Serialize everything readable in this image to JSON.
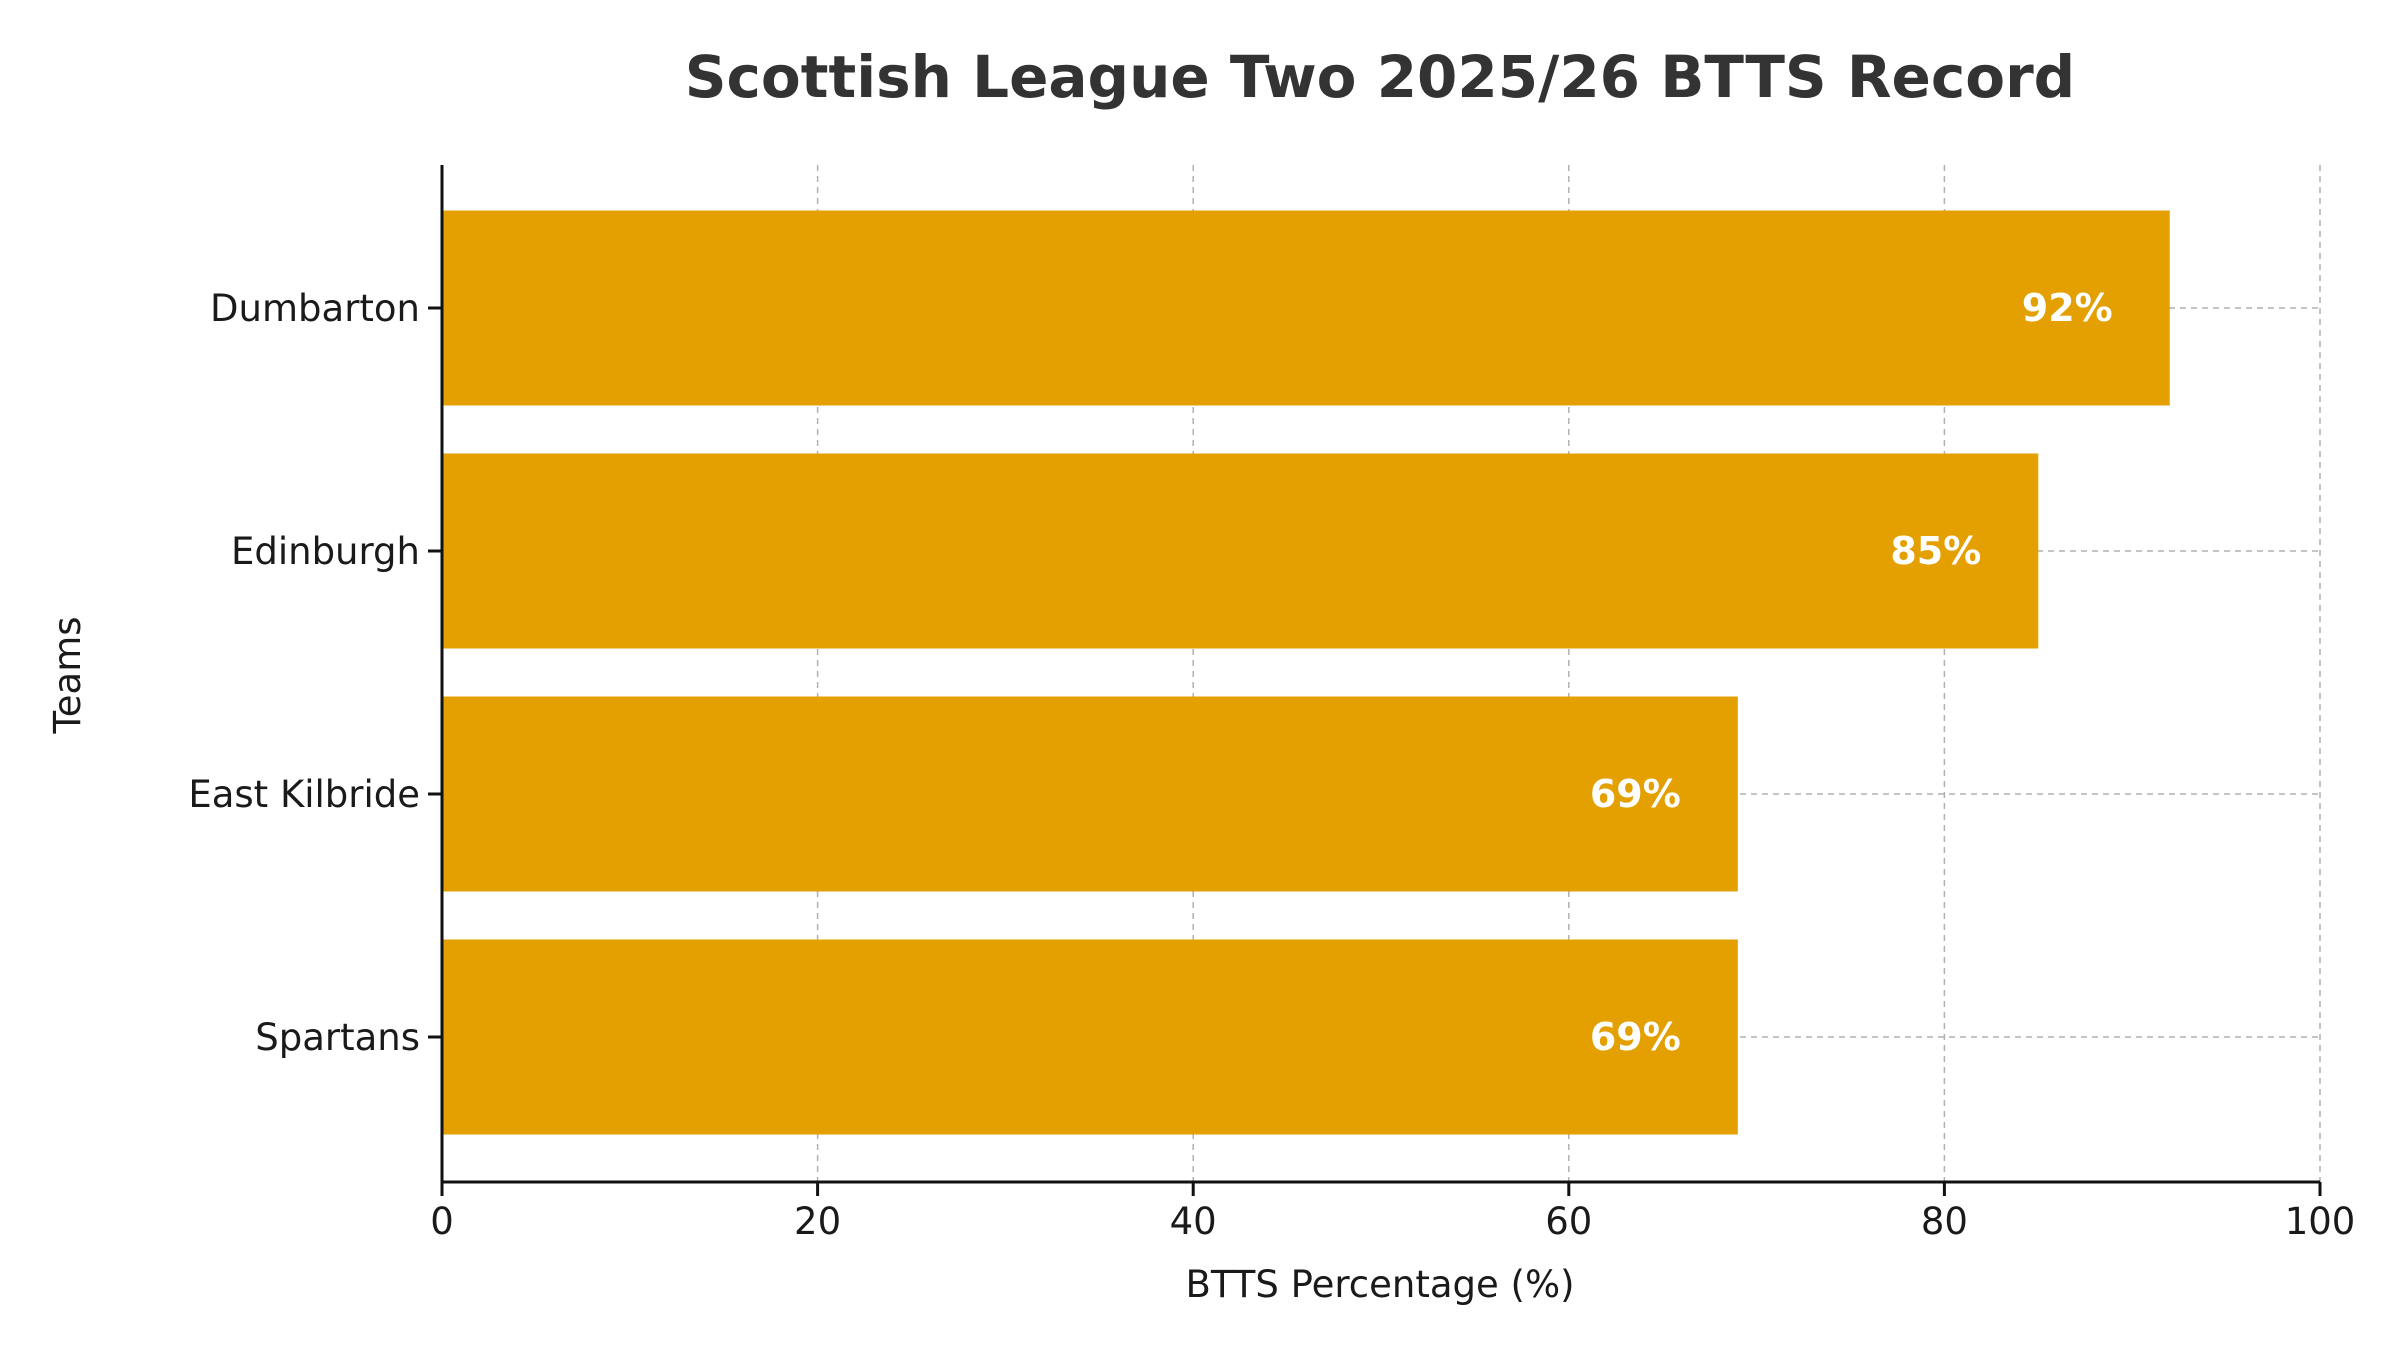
{
  "chart_data": {
    "type": "bar",
    "orientation": "horizontal",
    "title": "Scottish League Two 2025/26 BTTS Record",
    "xlabel": "BTTS Percentage (%)",
    "ylabel": "Teams",
    "categories": [
      "Dumbarton",
      "Edinburgh",
      "East Kilbride",
      "Spartans"
    ],
    "values": [
      92,
      85,
      69,
      69
    ],
    "data_labels": [
      "92%",
      "85%",
      "69%",
      "69%"
    ],
    "xlim": [
      0,
      100
    ],
    "xticks": [
      "0",
      "20",
      "40",
      "60",
      "80",
      "100"
    ],
    "grid": true,
    "legend": "none",
    "bar_color": "#E3A000",
    "label_color": "#FFFFFF"
  }
}
